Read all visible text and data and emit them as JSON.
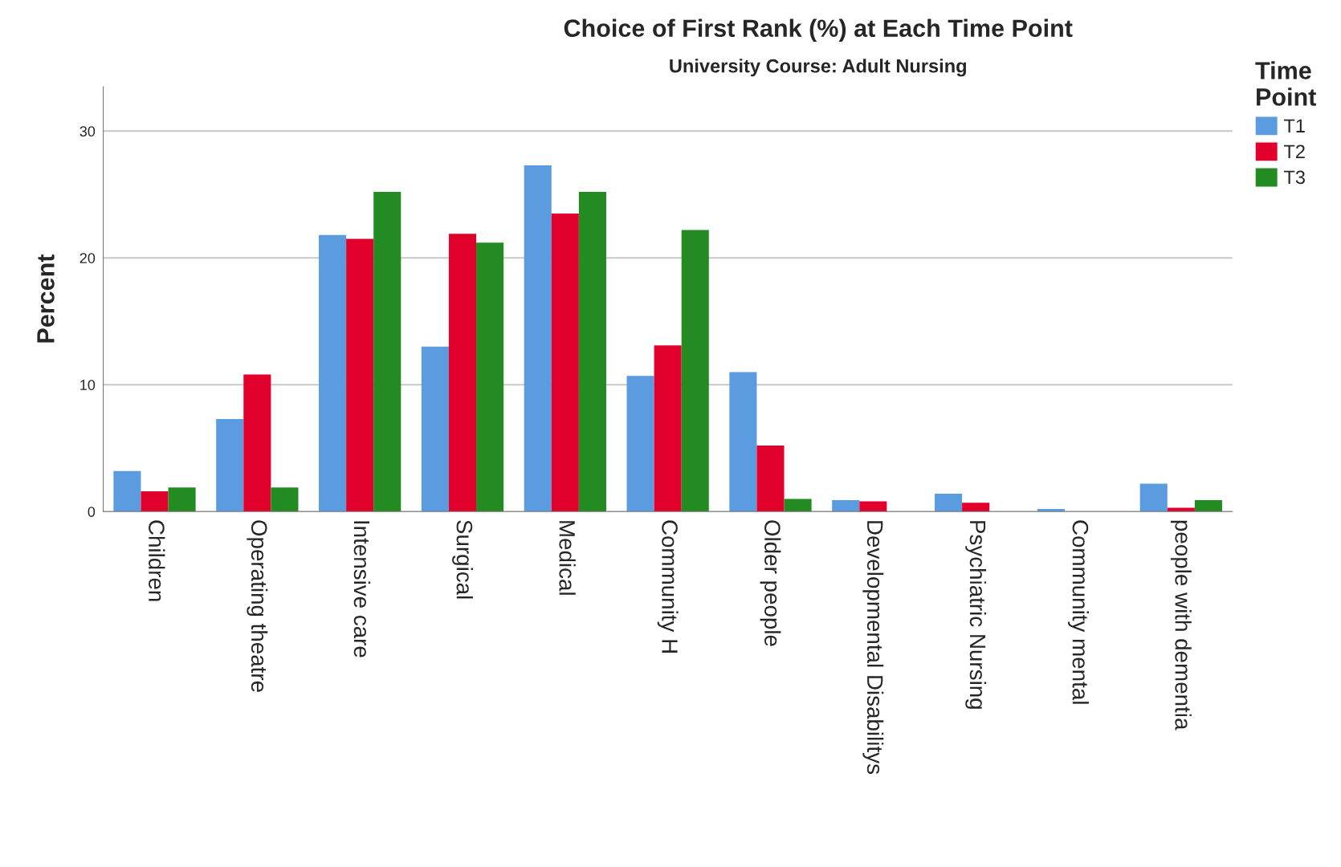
{
  "chart_data": {
    "type": "bar",
    "title": "Choice of First Rank (%) at Each Time Point",
    "subtitle": "University Course: Adult Nursing",
    "ylabel": "Percent",
    "legend_title": "Time Point",
    "categories": [
      "Children",
      "Operating theatre",
      "Intensive care",
      "Surgical",
      "Medical",
      "Community H",
      "Older people",
      "Developmental Disabilitys",
      "Psychiatric Nursing",
      "Community mental",
      "people with dementia"
    ],
    "series": [
      {
        "name": "T1",
        "color": "#5b9bdf",
        "values": [
          3.2,
          7.3,
          21.8,
          13.0,
          27.3,
          10.7,
          11.0,
          0.9,
          1.4,
          0.2,
          2.2
        ]
      },
      {
        "name": "T2",
        "color": "#e2002d",
        "values": [
          1.6,
          10.8,
          21.5,
          21.9,
          23.5,
          13.1,
          5.2,
          0.8,
          0.7,
          null,
          0.3
        ]
      },
      {
        "name": "T3",
        "color": "#228b22",
        "values": [
          1.9,
          1.9,
          25.2,
          21.2,
          25.2,
          22.2,
          1.0,
          null,
          null,
          null,
          0.9
        ]
      }
    ],
    "ylim": [
      0,
      33.5
    ],
    "yticks": [
      0,
      10,
      20,
      30
    ],
    "grid": "y",
    "legend": "top right"
  }
}
